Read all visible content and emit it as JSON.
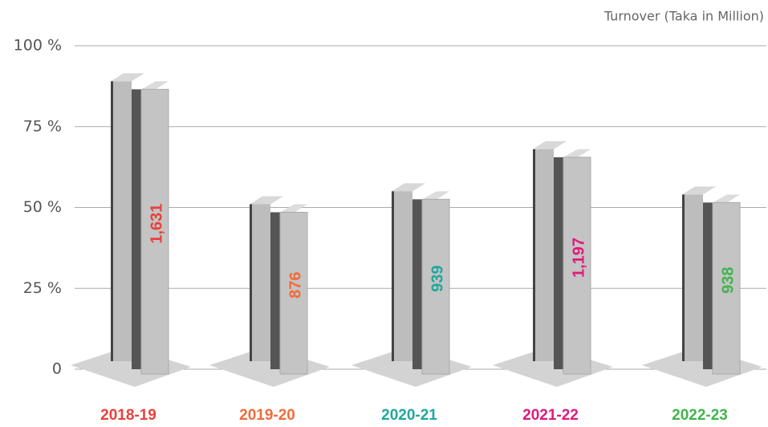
{
  "chart_data": {
    "type": "beam",
    "subtitle": "Turnover (Taka in Million)",
    "categories": [
      "2018-19",
      "2019-20",
      "2020-21",
      "2021-22",
      "2022-23"
    ],
    "values": [
      90,
      52,
      56,
      69,
      55
    ],
    "data_labels": [
      "1,631",
      "876",
      "939",
      "1,197",
      "938"
    ],
    "label_colors": [
      "#e8413a",
      "#f26b3a",
      "#1fa89c",
      "#e0197d",
      "#3fb54a"
    ],
    "color": "#bdbdbd",
    "ylim": [
      0,
      100
    ],
    "yticks": [
      {
        "value": 0,
        "label": "0"
      },
      {
        "value": 25,
        "label": "25 %"
      },
      {
        "value": 50,
        "label": "50 %"
      },
      {
        "value": 75,
        "label": "75 %"
      },
      {
        "value": 100,
        "label": "100 %"
      }
    ],
    "grid": true
  }
}
